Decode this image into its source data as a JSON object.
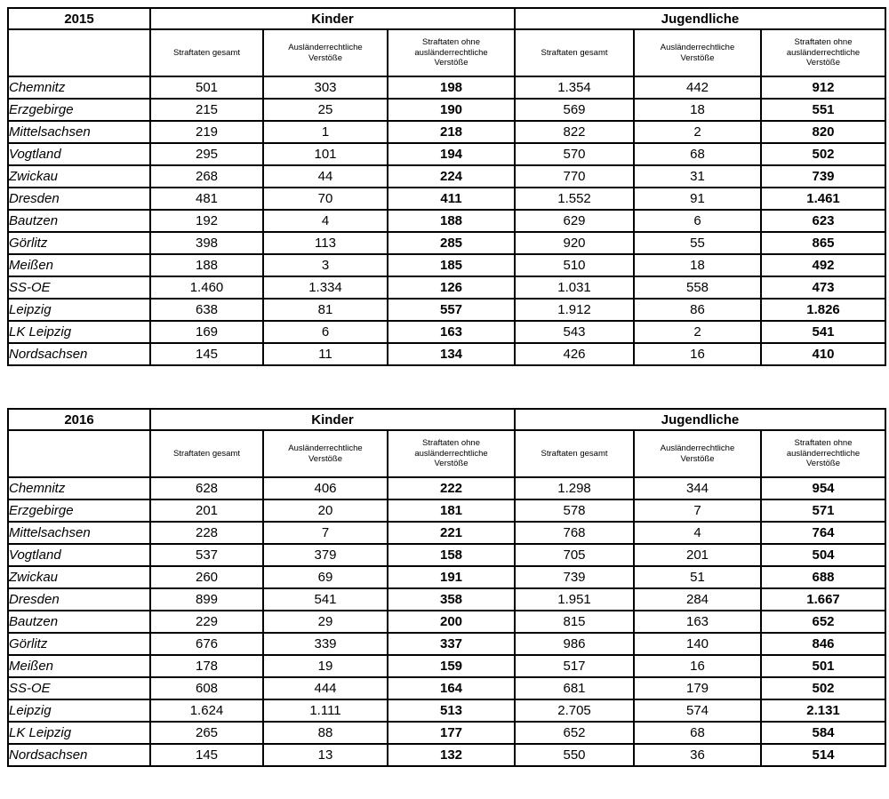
{
  "subheaders": [
    "Straftaten gesamt",
    "Ausländerrechtliche Verstöße",
    "Straftaten ohne ausländerrechtliche Verstöße"
  ],
  "tables": [
    {
      "year": "2015",
      "groups": [
        "Kinder",
        "Jugendliche"
      ],
      "rows": [
        {
          "region": "Chemnitz",
          "values": [
            "501",
            "303",
            "198",
            "1.354",
            "442",
            "912"
          ]
        },
        {
          "region": "Erzgebirge",
          "values": [
            "215",
            "25",
            "190",
            "569",
            "18",
            "551"
          ]
        },
        {
          "region": "Mittelsachsen",
          "values": [
            "219",
            "1",
            "218",
            "822",
            "2",
            "820"
          ]
        },
        {
          "region": "Vogtland",
          "values": [
            "295",
            "101",
            "194",
            "570",
            "68",
            "502"
          ]
        },
        {
          "region": "Zwickau",
          "values": [
            "268",
            "44",
            "224",
            "770",
            "31",
            "739"
          ]
        },
        {
          "region": "Dresden",
          "values": [
            "481",
            "70",
            "411",
            "1.552",
            "91",
            "1.461"
          ]
        },
        {
          "region": "Bautzen",
          "values": [
            "192",
            "4",
            "188",
            "629",
            "6",
            "623"
          ]
        },
        {
          "region": "Görlitz",
          "values": [
            "398",
            "113",
            "285",
            "920",
            "55",
            "865"
          ]
        },
        {
          "region": "Meißen",
          "values": [
            "188",
            "3",
            "185",
            "510",
            "18",
            "492"
          ]
        },
        {
          "region": "SS-OE",
          "values": [
            "1.460",
            "1.334",
            "126",
            "1.031",
            "558",
            "473"
          ]
        },
        {
          "region": "Leipzig",
          "values": [
            "638",
            "81",
            "557",
            "1.912",
            "86",
            "1.826"
          ]
        },
        {
          "region": "LK Leipzig",
          "values": [
            "169",
            "6",
            "163",
            "543",
            "2",
            "541"
          ]
        },
        {
          "region": "Nordsachsen",
          "values": [
            "145",
            "11",
            "134",
            "426",
            "16",
            "410"
          ]
        }
      ]
    },
    {
      "year": "2016",
      "groups": [
        "Kinder",
        "Jugendliche"
      ],
      "rows": [
        {
          "region": "Chemnitz",
          "values": [
            "628",
            "406",
            "222",
            "1.298",
            "344",
            "954"
          ]
        },
        {
          "region": "Erzgebirge",
          "values": [
            "201",
            "20",
            "181",
            "578",
            "7",
            "571"
          ]
        },
        {
          "region": "Mittelsachsen",
          "values": [
            "228",
            "7",
            "221",
            "768",
            "4",
            "764"
          ]
        },
        {
          "region": "Vogtland",
          "values": [
            "537",
            "379",
            "158",
            "705",
            "201",
            "504"
          ]
        },
        {
          "region": "Zwickau",
          "values": [
            "260",
            "69",
            "191",
            "739",
            "51",
            "688"
          ]
        },
        {
          "region": "Dresden",
          "values": [
            "899",
            "541",
            "358",
            "1.951",
            "284",
            "1.667"
          ]
        },
        {
          "region": "Bautzen",
          "values": [
            "229",
            "29",
            "200",
            "815",
            "163",
            "652"
          ]
        },
        {
          "region": "Görlitz",
          "values": [
            "676",
            "339",
            "337",
            "986",
            "140",
            "846"
          ]
        },
        {
          "region": "Meißen",
          "values": [
            "178",
            "19",
            "159",
            "517",
            "16",
            "501"
          ]
        },
        {
          "region": "SS-OE",
          "values": [
            "608",
            "444",
            "164",
            "681",
            "179",
            "502"
          ]
        },
        {
          "region": "Leipzig",
          "values": [
            "1.624",
            "1.111",
            "513",
            "2.705",
            "574",
            "2.131"
          ]
        },
        {
          "region": "LK Leipzig",
          "values": [
            "265",
            "88",
            "177",
            "652",
            "68",
            "584"
          ]
        },
        {
          "region": "Nordsachsen",
          "values": [
            "145",
            "13",
            "132",
            "550",
            "36",
            "514"
          ]
        }
      ]
    }
  ]
}
